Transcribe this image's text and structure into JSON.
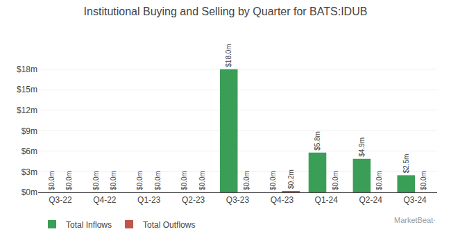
{
  "chart_data": {
    "type": "bar",
    "title": "Institutional Buying and Selling by Quarter for BATS:IDUB",
    "categories": [
      "Q3-22",
      "Q4-22",
      "Q1-23",
      "Q2-23",
      "Q3-23",
      "Q4-23",
      "Q1-24",
      "Q2-24",
      "Q3-24"
    ],
    "series": [
      {
        "name": "Total Inflows",
        "color": "#3a9e57",
        "values": [
          0.0,
          0.0,
          0.0,
          0.0,
          18.0,
          0.0,
          5.8,
          4.9,
          2.5
        ],
        "value_labels": [
          "$0.0m",
          "$0.0m",
          "$0.0m",
          "$0.0m",
          "$18.0m",
          "$0.0m",
          "$5.8m",
          "$4.9m",
          "$2.5m"
        ]
      },
      {
        "name": "Total Outflows",
        "color": "#c0554a",
        "values": [
          0.0,
          0.0,
          0.0,
          0.0,
          0.0,
          0.2,
          0.0,
          0.0,
          0.0
        ],
        "value_labels": [
          "$0.0m",
          "$0.0m",
          "$0.0m",
          "$0.0m",
          "$0.0m",
          "$0.2m",
          "$0.0m",
          "$0.0m",
          "$0.0m"
        ]
      }
    ],
    "ylim": [
      0,
      20
    ],
    "yticks": [
      {
        "value": 0,
        "label": "$0m"
      },
      {
        "value": 3,
        "label": "$3m"
      },
      {
        "value": 6,
        "label": "$6m"
      },
      {
        "value": 9,
        "label": "$9m"
      },
      {
        "value": 12,
        "label": "$12m"
      },
      {
        "value": 15,
        "label": "$15m"
      },
      {
        "value": 18,
        "label": "$18m"
      }
    ],
    "grid": true,
    "legend": "bottom",
    "data_labels": true,
    "annotations": [
      "MarketBeat·"
    ]
  }
}
